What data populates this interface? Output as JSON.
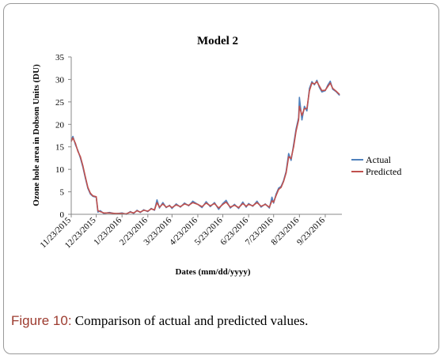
{
  "caption": {
    "label": "Figure 10:",
    "text": " Comparison of actual and predicted values."
  },
  "colors": {
    "actual": "#4f81bd",
    "predicted": "#c0504d",
    "axis": "#888888",
    "caption_label": "#9c3a2e"
  },
  "chart_data": {
    "type": "line",
    "title": "Model 2",
    "xlabel": "Dates (mm/dd/yyyy)",
    "ylabel": "Ozone hole area in Dobson Units (DU)",
    "ylim": [
      0,
      35
    ],
    "yticks": [
      0,
      5,
      10,
      15,
      20,
      25,
      30,
      35
    ],
    "xlim": [
      "11/23/2015",
      "10/13/2016"
    ],
    "xticks": [
      "11/23/2015",
      "12/23/2015",
      "1/23/2016",
      "2/23/2016",
      "3/23/2016",
      "4/23/2016",
      "5/23/2016",
      "6/23/2016",
      "7/23/2016",
      "8/23/2016",
      "9/23/2016"
    ],
    "grid": false,
    "legend_position": "right",
    "series": [
      {
        "name": "Actual",
        "points": [
          [
            "11/23/2015",
            16.5
          ],
          [
            "11/25/2015",
            17.3
          ],
          [
            "11/28/2015",
            15.5
          ],
          [
            "12/1/2015",
            14.2
          ],
          [
            "12/4/2015",
            12.5
          ],
          [
            "12/7/2015",
            10.5
          ],
          [
            "12/10/2015",
            8.0
          ],
          [
            "12/13/2015",
            5.8
          ],
          [
            "12/16/2015",
            4.5
          ],
          [
            "12/19/2015",
            4.0
          ],
          [
            "12/23/2015",
            3.8
          ],
          [
            "12/25/2015",
            0.5
          ],
          [
            "12/28/2015",
            0.8
          ],
          [
            "1/1/2016",
            0.2
          ],
          [
            "1/8/2016",
            0.4
          ],
          [
            "1/15/2016",
            0.1
          ],
          [
            "1/23/2016",
            0.3
          ],
          [
            "1/28/2016",
            0.0
          ],
          [
            "2/2/2016",
            0.6
          ],
          [
            "2/6/2016",
            0.2
          ],
          [
            "2/10/2016",
            0.9
          ],
          [
            "2/14/2016",
            0.4
          ],
          [
            "2/18/2016",
            1.0
          ],
          [
            "2/23/2016",
            0.6
          ],
          [
            "2/27/2016",
            1.3
          ],
          [
            "3/2/2016",
            0.9
          ],
          [
            "3/5/2016",
            3.2
          ],
          [
            "3/8/2016",
            1.4
          ],
          [
            "3/12/2016",
            2.6
          ],
          [
            "3/16/2016",
            1.5
          ],
          [
            "3/20/2016",
            2.0
          ],
          [
            "3/23/2016",
            1.3
          ],
          [
            "3/28/2016",
            2.3
          ],
          [
            "4/2/2016",
            1.6
          ],
          [
            "4/7/2016",
            2.5
          ],
          [
            "4/12/2016",
            1.9
          ],
          [
            "4/17/2016",
            2.9
          ],
          [
            "4/23/2016",
            2.2
          ],
          [
            "4/28/2016",
            1.5
          ],
          [
            "5/3/2016",
            2.8
          ],
          [
            "5/8/2016",
            1.7
          ],
          [
            "5/13/2016",
            2.6
          ],
          [
            "5/18/2016",
            1.1
          ],
          [
            "5/23/2016",
            2.4
          ],
          [
            "5/27/2016",
            3.1
          ],
          [
            "6/1/2016",
            1.4
          ],
          [
            "6/6/2016",
            2.2
          ],
          [
            "6/11/2016",
            1.3
          ],
          [
            "6/16/2016",
            2.7
          ],
          [
            "6/20/2016",
            1.6
          ],
          [
            "6/23/2016",
            2.4
          ],
          [
            "6/28/2016",
            1.8
          ],
          [
            "7/3/2016",
            2.9
          ],
          [
            "7/8/2016",
            1.6
          ],
          [
            "7/13/2016",
            2.3
          ],
          [
            "7/18/2016",
            1.4
          ],
          [
            "7/21/2016",
            3.8
          ],
          [
            "7/23/2016",
            2.5
          ],
          [
            "7/26/2016",
            4.5
          ],
          [
            "7/29/2016",
            5.8
          ],
          [
            "8/1/2016",
            6.2
          ],
          [
            "8/4/2016",
            7.5
          ],
          [
            "8/7/2016",
            9.5
          ],
          [
            "8/10/2016",
            13.5
          ],
          [
            "8/13/2016",
            12.0
          ],
          [
            "8/16/2016",
            15.5
          ],
          [
            "8/19/2016",
            19.0
          ],
          [
            "8/22/2016",
            21.5
          ],
          [
            "8/23/2016",
            26.0
          ],
          [
            "8/26/2016",
            21.0
          ],
          [
            "8/29/2016",
            24.0
          ],
          [
            "9/1/2016",
            23.0
          ],
          [
            "9/4/2016",
            28.0
          ],
          [
            "9/7/2016",
            29.5
          ],
          [
            "9/10/2016",
            28.8
          ],
          [
            "9/13/2016",
            29.8
          ],
          [
            "9/16/2016",
            28.2
          ],
          [
            "9/19/2016",
            27.2
          ],
          [
            "9/23/2016",
            27.5
          ],
          [
            "9/26/2016",
            28.7
          ],
          [
            "9/29/2016",
            29.6
          ],
          [
            "10/2/2016",
            27.8
          ],
          [
            "10/6/2016",
            27.3
          ],
          [
            "10/10/2016",
            26.5
          ]
        ]
      },
      {
        "name": "Predicted",
        "points": [
          [
            "11/23/2015",
            16.2
          ],
          [
            "11/25/2015",
            17.0
          ],
          [
            "11/28/2015",
            15.8
          ],
          [
            "12/1/2015",
            14.0
          ],
          [
            "12/4/2015",
            12.8
          ],
          [
            "12/7/2015",
            10.8
          ],
          [
            "12/10/2015",
            8.3
          ],
          [
            "12/13/2015",
            6.0
          ],
          [
            "12/16/2015",
            4.7
          ],
          [
            "12/19/2015",
            4.1
          ],
          [
            "12/23/2015",
            3.9
          ],
          [
            "12/25/2015",
            0.8
          ],
          [
            "12/28/2015",
            0.6
          ],
          [
            "1/1/2016",
            0.3
          ],
          [
            "1/8/2016",
            0.3
          ],
          [
            "1/15/2016",
            0.2
          ],
          [
            "1/23/2016",
            0.2
          ],
          [
            "1/28/2016",
            0.1
          ],
          [
            "2/2/2016",
            0.5
          ],
          [
            "2/6/2016",
            0.3
          ],
          [
            "2/10/2016",
            0.8
          ],
          [
            "2/14/2016",
            0.5
          ],
          [
            "2/18/2016",
            0.9
          ],
          [
            "2/23/2016",
            0.7
          ],
          [
            "2/27/2016",
            1.2
          ],
          [
            "3/2/2016",
            1.0
          ],
          [
            "3/5/2016",
            2.6
          ],
          [
            "3/8/2016",
            1.6
          ],
          [
            "3/12/2016",
            2.3
          ],
          [
            "3/16/2016",
            1.6
          ],
          [
            "3/20/2016",
            1.9
          ],
          [
            "3/23/2016",
            1.5
          ],
          [
            "3/28/2016",
            2.1
          ],
          [
            "4/2/2016",
            1.7
          ],
          [
            "4/7/2016",
            2.3
          ],
          [
            "4/12/2016",
            2.0
          ],
          [
            "4/17/2016",
            2.6
          ],
          [
            "4/23/2016",
            2.2
          ],
          [
            "4/28/2016",
            1.7
          ],
          [
            "5/3/2016",
            2.5
          ],
          [
            "5/8/2016",
            1.9
          ],
          [
            "5/13/2016",
            2.4
          ],
          [
            "5/18/2016",
            1.4
          ],
          [
            "5/23/2016",
            2.2
          ],
          [
            "5/27/2016",
            2.7
          ],
          [
            "6/1/2016",
            1.6
          ],
          [
            "6/6/2016",
            2.0
          ],
          [
            "6/11/2016",
            1.5
          ],
          [
            "6/16/2016",
            2.4
          ],
          [
            "6/20/2016",
            1.8
          ],
          [
            "6/23/2016",
            2.2
          ],
          [
            "6/28/2016",
            1.9
          ],
          [
            "7/3/2016",
            2.6
          ],
          [
            "7/8/2016",
            1.8
          ],
          [
            "7/13/2016",
            2.2
          ],
          [
            "7/18/2016",
            1.6
          ],
          [
            "7/21/2016",
            3.0
          ],
          [
            "7/23/2016",
            2.7
          ],
          [
            "7/26/2016",
            4.2
          ],
          [
            "7/29/2016",
            5.5
          ],
          [
            "8/1/2016",
            6.0
          ],
          [
            "8/4/2016",
            7.3
          ],
          [
            "8/7/2016",
            9.2
          ],
          [
            "8/10/2016",
            12.8
          ],
          [
            "8/13/2016",
            12.4
          ],
          [
            "8/16/2016",
            15.0
          ],
          [
            "8/19/2016",
            18.5
          ],
          [
            "8/22/2016",
            21.0
          ],
          [
            "8/23/2016",
            24.0
          ],
          [
            "8/26/2016",
            22.0
          ],
          [
            "8/29/2016",
            23.5
          ],
          [
            "9/1/2016",
            23.5
          ],
          [
            "9/4/2016",
            27.5
          ],
          [
            "9/7/2016",
            29.2
          ],
          [
            "9/10/2016",
            29.0
          ],
          [
            "9/13/2016",
            29.5
          ],
          [
            "9/16/2016",
            28.5
          ],
          [
            "9/19/2016",
            27.5
          ],
          [
            "9/23/2016",
            27.6
          ],
          [
            "9/26/2016",
            28.4
          ],
          [
            "9/29/2016",
            29.2
          ],
          [
            "10/2/2016",
            28.0
          ],
          [
            "10/6/2016",
            27.4
          ],
          [
            "10/10/2016",
            26.7
          ]
        ]
      }
    ]
  }
}
